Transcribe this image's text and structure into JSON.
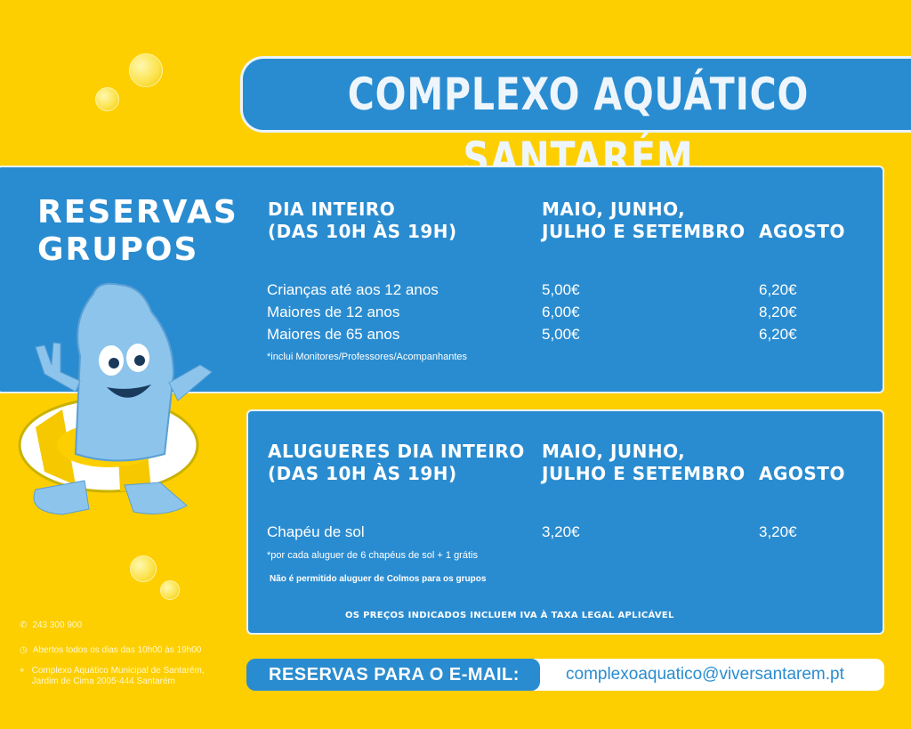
{
  "header": {
    "title": "COMPLEXO AQUÁTICO SANTARÉM"
  },
  "sidebar": {
    "heading_line1": "RESERVAS",
    "heading_line2": "GRUPOS"
  },
  "tickets": {
    "col1_line1": "DIA INTEIRO",
    "col1_line2": "(DAS 10H ÀS 19H)",
    "col2_line1": "MAIO, JUNHO,",
    "col2_line2": "JULHO E SETEMBRO",
    "col3": "AGOSTO",
    "rows": [
      {
        "label": "Crianças até aos 12 anos",
        "may_sep": "5,00€",
        "august": "6,20€"
      },
      {
        "label": "Maiores de 12 anos",
        "may_sep": "6,00€",
        "august": "8,20€"
      },
      {
        "label": "Maiores de 65 anos",
        "may_sep": "5,00€",
        "august": "6,20€"
      }
    ],
    "note": "*inclui Monitores/Professores/Acompanhantes"
  },
  "rentals": {
    "col1_line1": "ALUGUERES DIA INTEIRO",
    "col1_line2": "(DAS 10H ÀS 19H)",
    "col2_line1": "MAIO, JUNHO,",
    "col2_line2": "JULHO E SETEMBRO",
    "col3": "AGOSTO",
    "rows": [
      {
        "label": "Chapéu de sol",
        "may_sep": "3,20€",
        "august": "3,20€"
      }
    ],
    "note": "*por cada aluguer de 6 chapéus de sol + 1 grátis",
    "warning": "Não é permitido aluguer de Colmos para os grupos",
    "vat": "OS PREÇOS INDICADOS INCLUEM IVA À TAXA LEGAL APLICÁVEL"
  },
  "contact": {
    "phone": "243 300 900",
    "hours": "Abertos todos os dias das 10h00 às 19h00",
    "address_line1": "Complexo Aquático Municipal de Santarém,",
    "address_line2": "Jardim de Cima 2005-444 Santarém"
  },
  "email": {
    "label": "RESERVAS PARA O E-MAIL:",
    "address": "complexoaquatico@viversantarem.pt"
  },
  "colors": {
    "yellow": "#FDCF00",
    "blue": "#2A8CD0"
  }
}
